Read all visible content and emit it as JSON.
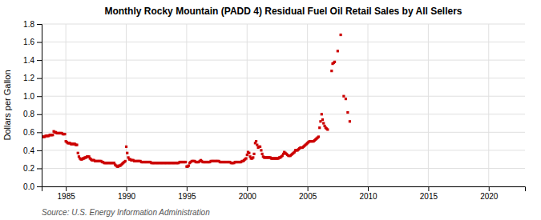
{
  "chart_data": {
    "type": "scatter",
    "title": "Monthly Rocky Mountain (PADD 4) Residual Fuel Oil Retail Sales by All Sellers",
    "ylabel": "Dollars per Gallon",
    "annotations": [
      "Source: U.S. Energy Information Administration"
    ],
    "color": "#cc0000",
    "marker": "square",
    "grid": true,
    "xlim": [
      1983,
      2023
    ],
    "ylim": [
      0.0,
      1.8
    ],
    "xticks": [
      1985,
      1990,
      1995,
      2000,
      2005,
      2010,
      2015,
      2020
    ],
    "yticks": [
      {
        "value": 0.0,
        "label": "0.0"
      },
      0.2,
      0.4,
      0.6,
      0.8,
      {
        "value": 1.0,
        "label": "1.0"
      },
      1.2,
      1.4,
      1.6,
      1.8
    ],
    "x": [
      1983.08,
      1983.17,
      1983.25,
      1983.33,
      1983.42,
      1983.5,
      1983.58,
      1983.67,
      1983.75,
      1983.83,
      1983.92,
      1984.0,
      1984.08,
      1984.17,
      1984.25,
      1984.33,
      1984.42,
      1984.5,
      1984.58,
      1984.67,
      1984.75,
      1984.83,
      1984.92,
      1985.0,
      1985.08,
      1985.17,
      1985.25,
      1985.33,
      1985.42,
      1985.5,
      1985.58,
      1985.67,
      1985.75,
      1985.83,
      1985.92,
      1986.0,
      1986.08,
      1986.17,
      1986.25,
      1986.33,
      1986.42,
      1986.5,
      1986.58,
      1986.67,
      1986.75,
      1986.83,
      1986.92,
      1987.0,
      1987.08,
      1987.17,
      1987.25,
      1987.33,
      1987.42,
      1987.5,
      1987.58,
      1987.67,
      1987.75,
      1987.83,
      1987.92,
      1988.0,
      1988.08,
      1988.17,
      1988.25,
      1988.33,
      1988.42,
      1988.5,
      1988.58,
      1988.67,
      1988.75,
      1988.83,
      1988.92,
      1989.0,
      1989.08,
      1989.17,
      1989.25,
      1989.33,
      1989.42,
      1989.5,
      1989.58,
      1989.67,
      1989.75,
      1989.83,
      1989.92,
      1990.0,
      1990.08,
      1990.17,
      1990.25,
      1990.33,
      1990.42,
      1990.5,
      1990.58,
      1990.67,
      1990.75,
      1990.83,
      1990.92,
      1991.0,
      1991.08,
      1991.17,
      1991.25,
      1991.33,
      1991.42,
      1991.5,
      1991.58,
      1991.67,
      1991.75,
      1991.83,
      1991.92,
      1992.0,
      1992.08,
      1992.17,
      1992.25,
      1992.33,
      1992.42,
      1992.5,
      1992.58,
      1992.67,
      1992.75,
      1992.83,
      1992.92,
      1993.0,
      1993.08,
      1993.17,
      1993.25,
      1993.33,
      1993.42,
      1993.5,
      1993.58,
      1993.67,
      1993.75,
      1993.83,
      1993.92,
      1994.0,
      1994.08,
      1994.17,
      1994.25,
      1994.33,
      1994.42,
      1994.5,
      1994.58,
      1994.67,
      1994.75,
      1994.83,
      1994.92,
      1995.0,
      1995.08,
      1995.17,
      1995.25,
      1995.33,
      1995.42,
      1995.5,
      1995.58,
      1995.67,
      1995.75,
      1995.83,
      1995.92,
      1996.0,
      1996.08,
      1996.17,
      1996.25,
      1996.33,
      1996.42,
      1996.5,
      1996.58,
      1996.67,
      1996.75,
      1996.83,
      1996.92,
      1997.0,
      1997.08,
      1997.17,
      1997.25,
      1997.33,
      1997.42,
      1997.5,
      1997.58,
      1997.67,
      1997.75,
      1997.83,
      1997.92,
      1998.0,
      1998.08,
      1998.17,
      1998.25,
      1998.33,
      1998.42,
      1998.5,
      1998.58,
      1998.67,
      1998.75,
      1998.83,
      1998.92,
      1999.0,
      1999.08,
      1999.17,
      1999.25,
      1999.33,
      1999.42,
      1999.5,
      1999.58,
      1999.67,
      1999.75,
      1999.83,
      1999.92,
      2000.0,
      2000.08,
      2000.17,
      2000.25,
      2000.33,
      2000.42,
      2000.5,
      2000.58,
      2000.67,
      2000.75,
      2000.83,
      2000.92,
      2001.0,
      2001.08,
      2001.17,
      2001.25,
      2001.33,
      2001.42,
      2001.5,
      2001.58,
      2001.67,
      2001.75,
      2001.83,
      2001.92,
      2002.0,
      2002.08,
      2002.17,
      2002.25,
      2002.33,
      2002.42,
      2002.5,
      2002.58,
      2002.67,
      2002.75,
      2002.83,
      2002.92,
      2003.0,
      2003.08,
      2003.17,
      2003.25,
      2003.33,
      2003.42,
      2003.5,
      2003.58,
      2003.67,
      2003.75,
      2003.83,
      2003.92,
      2004.0,
      2004.08,
      2004.17,
      2004.25,
      2004.33,
      2004.42,
      2004.5,
      2004.58,
      2004.67,
      2004.75,
      2004.83,
      2004.92,
      2005.0,
      2005.08,
      2005.17,
      2005.25,
      2005.33,
      2005.42,
      2005.5,
      2005.58,
      2005.67,
      2005.75,
      2005.83,
      2005.92,
      2006.0,
      2006.08,
      2006.17,
      2006.25,
      2006.33,
      2006.42,
      2006.5,
      2006.58,
      2006.67,
      2007.0,
      2007.08,
      2007.17,
      2007.25,
      2007.5,
      2007.75,
      2008.0,
      2008.17,
      2008.33,
      2008.5
    ],
    "values": [
      0.55,
      0.55,
      0.55,
      0.56,
      0.56,
      0.56,
      0.56,
      0.57,
      0.57,
      0.57,
      0.57,
      0.61,
      0.6,
      0.6,
      0.59,
      0.59,
      0.59,
      0.59,
      0.59,
      0.59,
      0.58,
      0.58,
      0.58,
      0.5,
      0.49,
      0.48,
      0.48,
      0.48,
      0.47,
      0.47,
      0.47,
      0.47,
      0.47,
      0.46,
      0.46,
      0.37,
      0.33,
      0.31,
      0.3,
      0.3,
      0.31,
      0.31,
      0.32,
      0.32,
      0.33,
      0.33,
      0.33,
      0.31,
      0.3,
      0.29,
      0.29,
      0.29,
      0.28,
      0.28,
      0.28,
      0.28,
      0.28,
      0.28,
      0.28,
      0.27,
      0.27,
      0.26,
      0.26,
      0.26,
      0.26,
      0.26,
      0.26,
      0.26,
      0.26,
      0.26,
      0.26,
      0.26,
      0.24,
      0.23,
      0.22,
      0.22,
      0.23,
      0.23,
      0.24,
      0.25,
      0.26,
      0.27,
      0.28,
      0.44,
      0.37,
      0.32,
      0.3,
      0.3,
      0.29,
      0.29,
      0.29,
      0.28,
      0.28,
      0.28,
      0.28,
      0.28,
      0.28,
      0.28,
      0.27,
      0.27,
      0.27,
      0.27,
      0.27,
      0.27,
      0.27,
      0.27,
      0.27,
      0.27,
      0.26,
      0.26,
      0.26,
      0.26,
      0.26,
      0.26,
      0.26,
      0.26,
      0.26,
      0.26,
      0.26,
      0.26,
      0.26,
      0.26,
      0.26,
      0.26,
      0.26,
      0.26,
      0.26,
      0.26,
      0.26,
      0.26,
      0.26,
      0.26,
      0.26,
      0.26,
      0.26,
      0.26,
      0.27,
      0.27,
      0.27,
      0.27,
      0.27,
      0.27,
      0.27,
      0.22,
      0.22,
      0.23,
      0.26,
      0.27,
      0.28,
      0.28,
      0.28,
      0.28,
      0.27,
      0.27,
      0.27,
      0.27,
      0.28,
      0.29,
      0.28,
      0.27,
      0.27,
      0.27,
      0.27,
      0.27,
      0.27,
      0.27,
      0.27,
      0.28,
      0.28,
      0.28,
      0.28,
      0.28,
      0.28,
      0.28,
      0.28,
      0.28,
      0.27,
      0.27,
      0.27,
      0.27,
      0.27,
      0.27,
      0.27,
      0.27,
      0.27,
      0.27,
      0.27,
      0.26,
      0.26,
      0.26,
      0.26,
      0.27,
      0.27,
      0.27,
      0.27,
      0.27,
      0.27,
      0.27,
      0.28,
      0.28,
      0.29,
      0.3,
      0.31,
      0.35,
      0.38,
      0.37,
      0.33,
      0.31,
      0.31,
      0.32,
      0.36,
      0.48,
      0.5,
      0.46,
      0.43,
      0.44,
      0.44,
      0.4,
      0.36,
      0.33,
      0.32,
      0.32,
      0.32,
      0.32,
      0.32,
      0.32,
      0.32,
      0.31,
      0.31,
      0.31,
      0.31,
      0.31,
      0.31,
      0.31,
      0.31,
      0.32,
      0.32,
      0.33,
      0.34,
      0.36,
      0.38,
      0.37,
      0.36,
      0.35,
      0.34,
      0.34,
      0.34,
      0.35,
      0.36,
      0.37,
      0.38,
      0.4,
      0.4,
      0.4,
      0.41,
      0.42,
      0.43,
      0.43,
      0.43,
      0.44,
      0.45,
      0.46,
      0.47,
      0.48,
      0.49,
      0.5,
      0.5,
      0.5,
      0.5,
      0.5,
      0.51,
      0.52,
      0.53,
      0.54,
      0.55,
      0.65,
      0.72,
      0.8,
      0.74,
      0.7,
      0.67,
      0.65,
      0.64,
      0.63,
      1.28,
      1.36,
      1.37,
      1.38,
      1.5,
      1.68,
      1.0,
      0.97,
      0.82,
      0.72
    ]
  }
}
